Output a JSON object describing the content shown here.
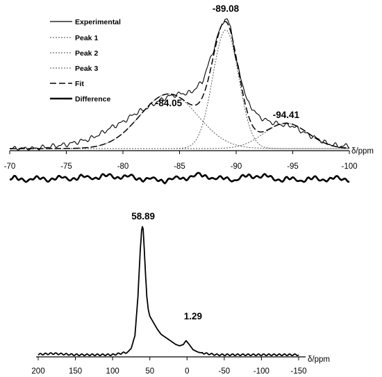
{
  "chart_data": [
    {
      "type": "line",
      "xlabel": "δ/ppm",
      "xlim": [
        -70,
        -100
      ],
      "x_ticks": [
        -70,
        -75,
        -80,
        -85,
        -90,
        -95,
        -100
      ],
      "tick_labels": [
        "-70",
        "-75",
        "-80",
        "-85",
        "-90",
        "-95",
        "-100"
      ],
      "legend": {
        "placement": "top-left",
        "entries": [
          "Experimental",
          "Peak 1",
          "Peak 2",
          "Peak 3",
          "Fit",
          "Difference"
        ]
      },
      "peak_labels": [
        {
          "x": -84.05,
          "text": "-84.05"
        },
        {
          "x": -89.08,
          "text": "-89.08"
        },
        {
          "x": -94.41,
          "text": "-94.41"
        }
      ],
      "series": [
        {
          "name": "Peak 1",
          "style": "dotted",
          "center": -84.05,
          "height": 0.41,
          "fwhm": 6.0
        },
        {
          "name": "Peak 2",
          "style": "dotted",
          "center": -89.08,
          "height": 0.89,
          "fwhm": 2.7
        },
        {
          "name": "Peak 3",
          "style": "dotted",
          "center": -94.41,
          "height": 0.19,
          "fwhm": 4.6
        },
        {
          "name": "Fit",
          "style": "dashed"
        },
        {
          "name": "Experimental",
          "style": "solid",
          "x": [
            -70,
            -72,
            -74,
            -75,
            -76,
            -77,
            -78,
            -79,
            -80,
            -81,
            -82,
            -83,
            -84,
            -85,
            -86,
            -87,
            -88,
            -88.5,
            -89,
            -89.5,
            -90,
            -91,
            -92,
            -93,
            -94,
            -95,
            -96,
            -97,
            -98,
            -99,
            -100
          ],
          "y": [
            0.0,
            0.0,
            0.02,
            0.03,
            0.05,
            0.07,
            0.11,
            0.16,
            0.2,
            0.26,
            0.3,
            0.35,
            0.39,
            0.41,
            0.42,
            0.5,
            0.74,
            0.88,
            0.98,
            0.92,
            0.66,
            0.35,
            0.24,
            0.2,
            0.18,
            0.17,
            0.12,
            0.08,
            0.04,
            0.02,
            0.02
          ]
        },
        {
          "name": "Difference",
          "style": "thick",
          "x_range": [
            -70,
            -100
          ]
        }
      ]
    },
    {
      "type": "line",
      "xlabel": "δ/ppm",
      "xlim": [
        200,
        -150
      ],
      "x_ticks": [
        200,
        150,
        100,
        50,
        0,
        -50,
        -100,
        -150
      ],
      "tick_labels": [
        "200",
        "150",
        "100",
        "50",
        "0",
        "-50",
        "-100",
        "-150"
      ],
      "peak_labels": [
        {
          "x": 58.89,
          "text": "58.89"
        },
        {
          "x": 1.29,
          "text": "1.29"
        }
      ],
      "series": [
        {
          "style": "solid",
          "x": [
            210,
            180,
            150,
            120,
            100,
            90,
            80,
            75,
            70,
            66,
            63,
            61,
            60,
            59,
            58,
            56,
            54,
            52,
            50,
            45,
            40,
            35,
            30,
            25,
            20,
            15,
            10,
            5,
            1.3,
            -3,
            -8,
            -15,
            -25,
            -40,
            -60,
            -100,
            -150
          ],
          "y": [
            0.0,
            0.01,
            0.0,
            0.0,
            0.0,
            0.01,
            0.02,
            0.05,
            0.15,
            0.45,
            0.8,
            0.97,
            1.0,
            0.98,
            0.88,
            0.65,
            0.45,
            0.35,
            0.3,
            0.25,
            0.2,
            0.16,
            0.14,
            0.12,
            0.1,
            0.08,
            0.07,
            0.08,
            0.11,
            0.08,
            0.04,
            0.02,
            0.01,
            0.0,
            0.0,
            0.0,
            0.0
          ]
        }
      ]
    }
  ]
}
